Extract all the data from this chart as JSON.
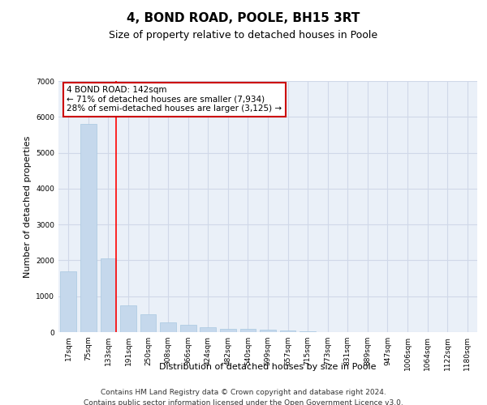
{
  "title": "4, BOND ROAD, POOLE, BH15 3RT",
  "subtitle": "Size of property relative to detached houses in Poole",
  "xlabel": "Distribution of detached houses by size in Poole",
  "ylabel": "Number of detached properties",
  "categories": [
    "17sqm",
    "75sqm",
    "133sqm",
    "191sqm",
    "250sqm",
    "308sqm",
    "366sqm",
    "424sqm",
    "482sqm",
    "540sqm",
    "599sqm",
    "657sqm",
    "715sqm",
    "773sqm",
    "831sqm",
    "889sqm",
    "947sqm",
    "1006sqm",
    "1064sqm",
    "1122sqm",
    "1180sqm"
  ],
  "values": [
    1700,
    5800,
    2050,
    750,
    500,
    280,
    200,
    130,
    100,
    80,
    60,
    40,
    30,
    10,
    5,
    5,
    3,
    2,
    2,
    1,
    1
  ],
  "bar_color": "#c5d8ec",
  "bar_edge_color": "#a8c8e0",
  "red_line_index": 2,
  "annotation_text": "4 BOND ROAD: 142sqm\n← 71% of detached houses are smaller (7,934)\n28% of semi-detached houses are larger (3,125) →",
  "annotation_box_color": "#ffffff",
  "annotation_box_edge_color": "#cc0000",
  "ylim": [
    0,
    7000
  ],
  "yticks": [
    0,
    1000,
    2000,
    3000,
    4000,
    5000,
    6000,
    7000
  ],
  "grid_color": "#d0d8e8",
  "background_color": "#eaf0f8",
  "footer_line1": "Contains HM Land Registry data © Crown copyright and database right 2024.",
  "footer_line2": "Contains public sector information licensed under the Open Government Licence v3.0.",
  "title_fontsize": 11,
  "subtitle_fontsize": 9,
  "axis_label_fontsize": 8,
  "tick_fontsize": 6.5,
  "annotation_fontsize": 7.5,
  "footer_fontsize": 6.5
}
